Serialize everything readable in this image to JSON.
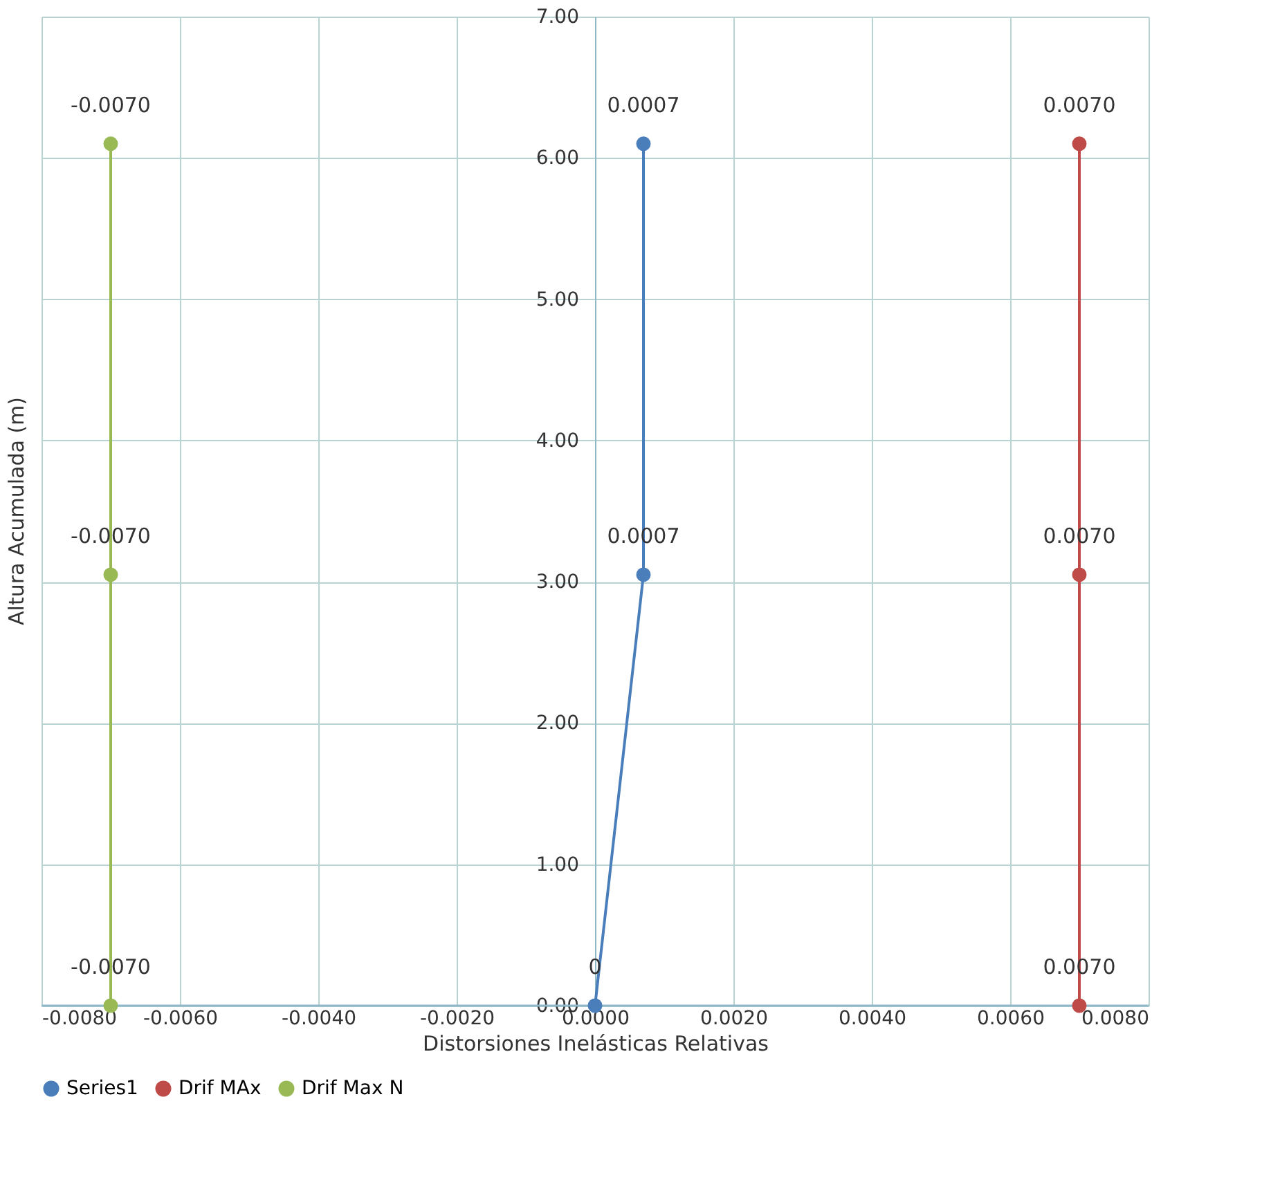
{
  "chart_data": {
    "type": "line",
    "xlabel": "Distorsiones Inelásticas Relativas",
    "ylabel": "Altura Acumulada (m)",
    "xlim": [
      -0.008,
      0.008
    ],
    "xticks": [
      {
        "value": -0.008,
        "label": "-0.0080"
      },
      {
        "value": -0.006,
        "label": "-0.0060"
      },
      {
        "value": -0.004,
        "label": "-0.0040"
      },
      {
        "value": -0.002,
        "label": "-0.0020"
      },
      {
        "value": 0,
        "label": "0.0000"
      },
      {
        "value": 0.002,
        "label": "0.0020"
      },
      {
        "value": 0.004,
        "label": "0.0040"
      },
      {
        "value": 0.006,
        "label": "0.0060"
      },
      {
        "value": 0.008,
        "label": "0.0080"
      }
    ],
    "ylim": [
      0,
      7
    ],
    "yticks": [
      {
        "value": 0,
        "label": "0.00"
      },
      {
        "value": 1,
        "label": "1.00"
      },
      {
        "value": 2,
        "label": "2.00"
      },
      {
        "value": 3,
        "label": "3.00"
      },
      {
        "value": 4,
        "label": "4.00"
      },
      {
        "value": 5,
        "label": "5.00"
      },
      {
        "value": 6,
        "label": "6.00"
      },
      {
        "value": 7,
        "label": "7.00"
      }
    ],
    "series": [
      {
        "name": "Series1",
        "color": "#4a7ebb",
        "x": [
          0,
          0.0007,
          0.0007
        ],
        "values": [
          0,
          3.05,
          6.1
        ]
      },
      {
        "name": "Drif MAx",
        "color": "#be4b48",
        "x": [
          0.007,
          0.007,
          0.007
        ],
        "values": [
          0,
          3.05,
          6.1
        ]
      },
      {
        "name": "Drif Max N",
        "color": "#98b954",
        "x": [
          -0.007,
          -0.007,
          -0.007
        ],
        "values": [
          0,
          3.05,
          6.1
        ]
      }
    ],
    "annotations": [
      {
        "text": "0",
        "x": 0,
        "y": 0
      },
      {
        "text": "0.0007",
        "x": 0.0007,
        "y": 3.05
      },
      {
        "text": "0.0007",
        "x": 0.0007,
        "y": 6.1
      },
      {
        "text": "0.0070",
        "x": 0.007,
        "y": 0
      },
      {
        "text": "0.0070",
        "x": 0.007,
        "y": 3.05
      },
      {
        "text": "0.0070",
        "x": 0.007,
        "y": 6.1
      },
      {
        "text": "-0.0070",
        "x": -0.007,
        "y": 0
      },
      {
        "text": "-0.0070",
        "x": -0.007,
        "y": 3.05
      },
      {
        "text": "-0.0070",
        "x": -0.007,
        "y": 6.1
      }
    ],
    "marker": "circle",
    "line_style": "solid",
    "grid": true,
    "legend": "bottom"
  }
}
